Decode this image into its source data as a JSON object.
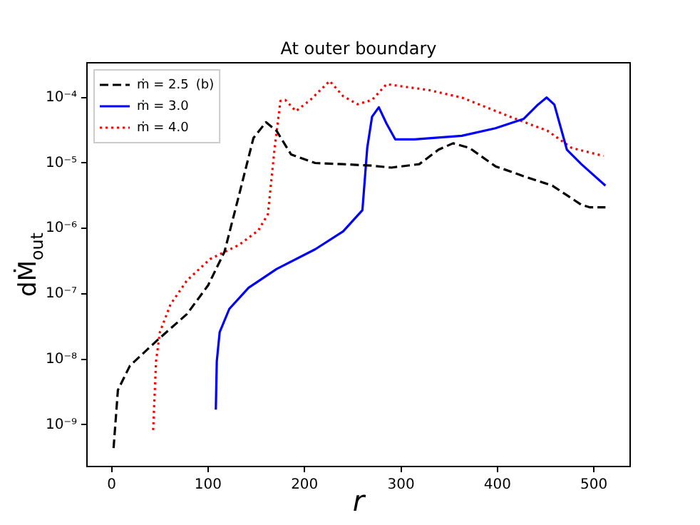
{
  "chart_data": {
    "type": "line",
    "title": "At outer boundary",
    "xlabel": "r",
    "ylabel": "dṀ$_{out}$",
    "annotations": [
      "(b)"
    ],
    "xlim": [
      -25.6,
      537.6
    ],
    "xticks": [
      0,
      100,
      200,
      300,
      400,
      500
    ],
    "ylim": [
      2.3e-10,
      0.00034
    ],
    "log": "y",
    "yticks": [
      {
        "value": 1e-09,
        "label": "10⁻⁹"
      },
      {
        "value": 1e-08,
        "label": "10⁻⁸"
      },
      {
        "value": 1e-07,
        "label": "10⁻⁷"
      },
      {
        "value": 1e-06,
        "label": "10⁻⁶"
      },
      {
        "value": 1e-05,
        "label": "10⁻⁵"
      },
      {
        "value": 0.0001,
        "label": "10⁻⁴"
      }
    ],
    "grid": false,
    "legend": "top left",
    "marker": "none",
    "series": [
      {
        "name": "ṁ = 2.5",
        "color": "#000000",
        "line_style": "dashed",
        "x": [
          2,
          6.5,
          19,
          48,
          78,
          100,
          117,
          132,
          147,
          160,
          171,
          186,
          211,
          240,
          270,
          290,
          319,
          339,
          354,
          371,
          398,
          427,
          457,
          487,
          496,
          512
        ],
        "values": [
          4.4e-10,
          3.4e-09,
          8e-09,
          2e-08,
          4.9e-08,
          1.35e-07,
          4.4e-07,
          3.2e-06,
          2.4e-05,
          4.2e-05,
          3.1e-05,
          1.35e-05,
          1e-05,
          9.6e-06,
          9.1e-06,
          8.5e-06,
          9.6e-06,
          1.6e-05,
          2e-05,
          1.7e-05,
          8.9e-06,
          6.3e-06,
          4.5e-06,
          2.3e-06,
          2.1e-06,
          2.1e-06
        ]
      },
      {
        "name": "ṁ = 3.0",
        "color": "#0000ff",
        "line_style": "solid",
        "x": [
          108,
          109,
          112,
          122,
          142,
          171,
          211,
          240,
          260,
          265,
          270,
          277,
          285,
          294,
          314,
          363,
          398,
          427,
          442,
          451,
          459,
          472,
          487,
          512
        ],
        "values": [
          1.7e-09,
          9.3e-09,
          2.6e-08,
          5.9e-08,
          1.24e-07,
          2.4e-07,
          4.8e-07,
          9e-07,
          1.9e-06,
          1.7e-05,
          5.1e-05,
          7.1e-05,
          4e-05,
          2.3e-05,
          2.3e-05,
          2.6e-05,
          3.4e-05,
          4.7e-05,
          7.8e-05,
          0.0001,
          7.8e-05,
          1.6e-05,
          9.6e-06,
          4.5e-06
        ]
      },
      {
        "name": "ṁ = 4.0",
        "color": "#ff0000",
        "line_style": "dotted",
        "x": [
          43,
          46,
          50,
          61,
          78,
          102,
          132,
          152,
          162,
          169,
          175,
          180,
          191,
          206,
          226,
          240,
          255,
          270,
          285,
          329,
          363,
          413,
          452,
          477,
          510
        ],
        "values": [
          8.3e-10,
          9.3e-09,
          2.6e-08,
          6.9e-08,
          1.6e-07,
          3.4e-07,
          5.6e-07,
          9.3e-07,
          1.65e-06,
          1.7e-05,
          8.9e-05,
          9.2e-05,
          6.2e-05,
          9.2e-05,
          0.000179,
          0.000105,
          7.9e-05,
          9.2e-05,
          0.00016,
          0.00013,
          0.0001,
          5.1e-05,
          3.1e-05,
          1.7e-05,
          1.28e-05
        ]
      }
    ]
  }
}
